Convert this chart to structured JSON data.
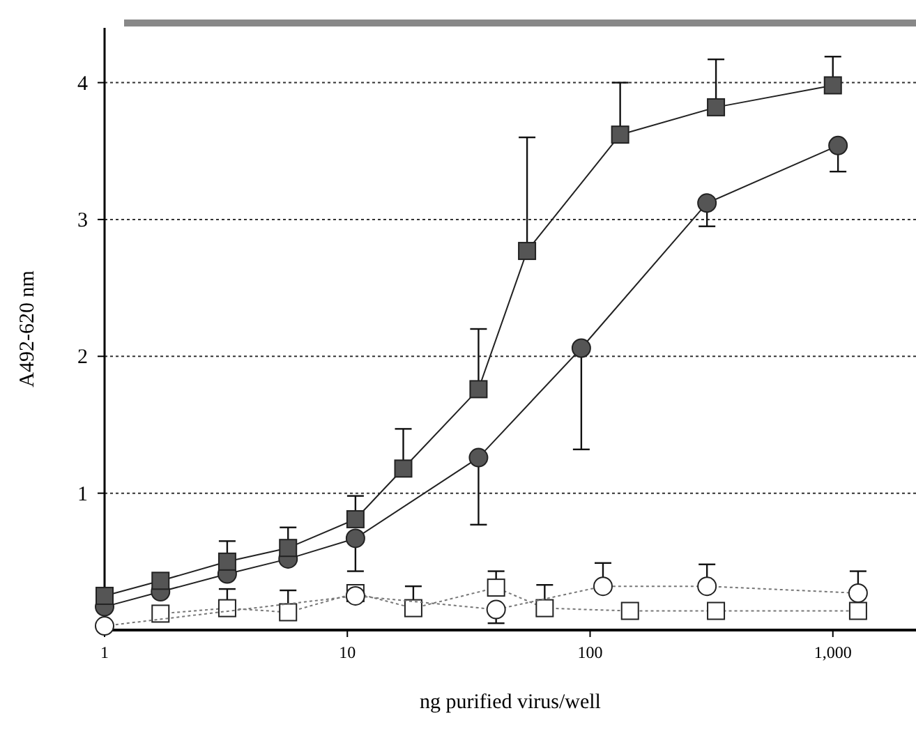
{
  "chart_data": {
    "type": "line",
    "xlabel": "ng purified virus/well",
    "ylabel": "A492-620 nm",
    "log": "x",
    "xlim": [
      1,
      2200
    ],
    "xticks": [
      1,
      10,
      100,
      {
        "value": 1000,
        "label": "1,000"
      }
    ],
    "ylim": [
      0,
      4.4
    ],
    "yticks": [
      1,
      2,
      3,
      4
    ],
    "grid": "y",
    "series": [
      {
        "color": "#555555",
        "marker": "square",
        "line_style": "solid",
        "x": [
          1,
          1.7,
          3.2,
          5.7,
          10.8,
          17,
          34.7,
          55,
          133,
          330,
          1000
        ],
        "values": [
          0.25,
          0.36,
          0.5,
          0.6,
          0.81,
          1.18,
          1.76,
          2.77,
          3.62,
          3.82,
          3.98
        ],
        "errors": [
          null,
          null,
          [
            0.5,
            0.65
          ],
          [
            0.6,
            0.75
          ],
          [
            0.81,
            0.98
          ],
          [
            1.18,
            1.47
          ],
          [
            1.76,
            2.2
          ],
          [
            2.77,
            3.6
          ],
          [
            3.62,
            4.0
          ],
          [
            3.82,
            4.17
          ],
          [
            3.98,
            4.19
          ]
        ]
      },
      {
        "color": "#555555",
        "marker": "circle",
        "line_style": "solid",
        "x": [
          1,
          1.7,
          3.2,
          5.7,
          10.8,
          34.7,
          92,
          303,
          1050
        ],
        "values": [
          0.17,
          0.28,
          0.41,
          0.52,
          0.67,
          1.26,
          2.06,
          3.12,
          3.54
        ],
        "errors": [
          null,
          null,
          null,
          null,
          [
            0.43,
            0.67
          ],
          [
            0.77,
            1.26
          ],
          [
            1.32,
            2.06
          ],
          [
            2.95,
            3.12
          ],
          [
            3.35,
            3.54
          ]
        ]
      },
      {
        "color": "#ffffff",
        "marker": "circle",
        "line_style": "dotted",
        "x": [
          1,
          10.8,
          41,
          113,
          303,
          1270
        ],
        "values": [
          0.03,
          0.25,
          0.15,
          0.32,
          0.32,
          0.27
        ],
        "errors": [
          null,
          null,
          [
            0.05,
            0.15
          ],
          [
            0.32,
            0.49
          ],
          [
            0.32,
            0.48
          ],
          [
            0.27,
            0.43
          ]
        ]
      },
      {
        "color": "#ffffff",
        "marker": "square",
        "line_style": "dotted",
        "x": [
          1.7,
          3.2,
          5.7,
          10.8,
          18.7,
          41,
          65,
          146,
          330,
          1270
        ],
        "values": [
          0.12,
          0.16,
          0.13,
          0.27,
          0.16,
          0.31,
          0.16,
          0.14,
          0.14,
          0.14
        ],
        "errors": [
          null,
          [
            0.16,
            0.3
          ],
          [
            0.13,
            0.29
          ],
          null,
          [
            0.16,
            0.32
          ],
          [
            0.31,
            0.43
          ],
          [
            0.16,
            0.33
          ],
          null,
          null,
          null
        ]
      }
    ]
  }
}
